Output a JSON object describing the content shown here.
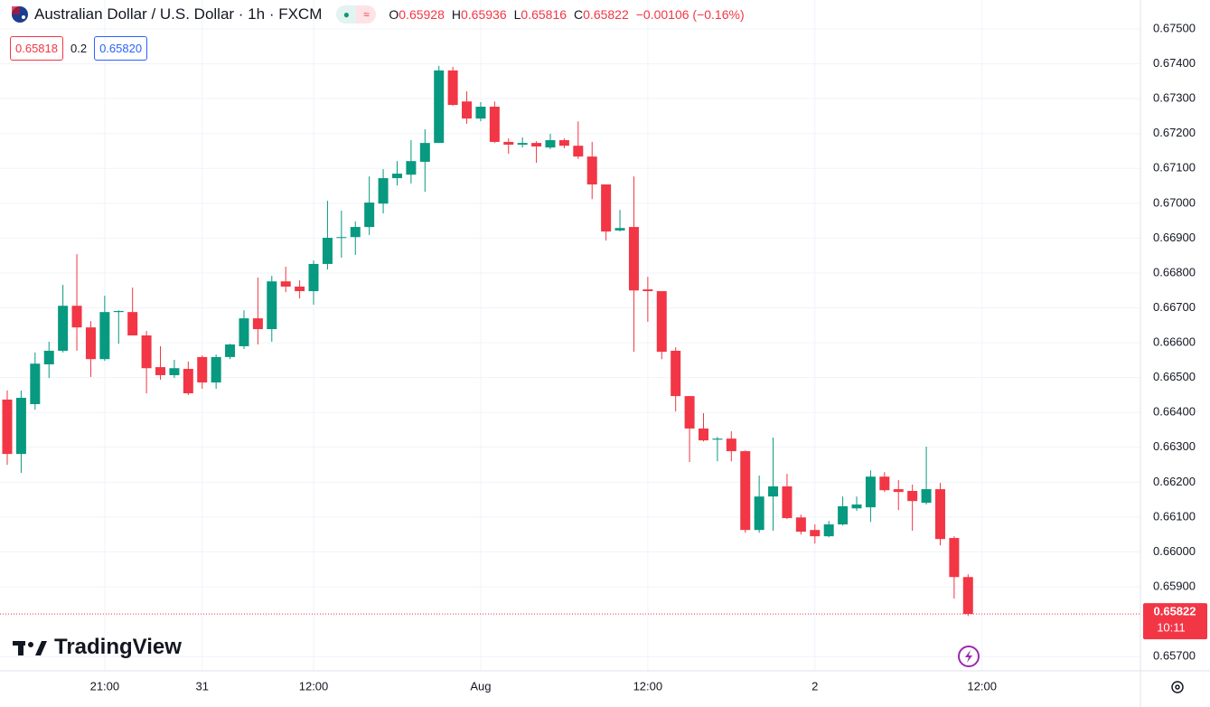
{
  "chart_data": {
    "type": "candlestick",
    "title": "Australian Dollar / U.S. Dollar · 1h · FXCM",
    "legend": {
      "open_key": "O",
      "open": "0.65928",
      "high_key": "H",
      "high": "0.65936",
      "low_key": "L",
      "low": "0.65816",
      "close_key": "C",
      "close": "0.65822",
      "change": "−0.00106 (−0.16%)"
    },
    "bid": "0.65818",
    "spread": "0.2",
    "ask": "0.65820",
    "countdown": "10:11",
    "brand": "TradingView",
    "up_color": "#089981",
    "down_color": "#f23645",
    "categories": [
      null,
      null,
      null,
      null,
      null,
      null,
      null,
      "21:00",
      null,
      null,
      null,
      null,
      null,
      null,
      "31",
      null,
      null,
      null,
      null,
      null,
      null,
      null,
      "12:00",
      null,
      null,
      null,
      null,
      null,
      null,
      null,
      null,
      null,
      null,
      null,
      "Aug",
      null,
      null,
      null,
      null,
      null,
      null,
      null,
      null,
      null,
      null,
      null,
      "12:00",
      null,
      null,
      null,
      null,
      null,
      null,
      null,
      null,
      null,
      null,
      null,
      "2",
      null,
      null,
      null,
      null,
      null,
      null,
      null,
      null,
      null,
      null,
      null,
      "12:00"
    ],
    "open": [
      0.66437,
      0.66281,
      0.66424,
      0.66538,
      0.66577,
      0.66706,
      0.66644,
      0.66553,
      0.66688,
      0.66688,
      0.66621,
      0.6653,
      0.66507,
      0.66525,
      0.66559,
      0.66486,
      0.66559,
      0.6659,
      0.6667,
      0.66639,
      0.66776,
      0.66761,
      0.66748,
      0.66826,
      0.66901,
      0.66903,
      0.66932,
      0.66999,
      0.67072,
      0.67082,
      0.67119,
      0.67173,
      0.67381,
      0.67292,
      0.67243,
      0.67277,
      0.67176,
      0.67168,
      0.67173,
      0.6716,
      0.67181,
      0.67165,
      0.67134,
      0.67054,
      0.66922,
      0.66932,
      0.66753,
      0.66748,
      0.66577,
      0.66447,
      0.66354,
      0.66322,
      0.66325,
      0.66289,
      0.66063,
      0.66159,
      0.66188,
      0.66099,
      0.66063,
      0.66045,
      0.66079,
      0.66125,
      0.66128,
      0.66216,
      0.6618,
      0.66175,
      0.66141,
      0.6618,
      0.6604,
      0.65928,
      null
    ],
    "high": [
      0.66463,
      0.66463,
      0.66572,
      0.66603,
      0.66766,
      0.66854,
      0.66662,
      0.66735,
      0.66693,
      0.66758,
      0.66634,
      0.6659,
      0.66551,
      0.66546,
      0.66564,
      0.66566,
      0.66597,
      0.66693,
      0.66787,
      0.66792,
      0.66818,
      0.66779,
      0.66836,
      0.67007,
      0.66979,
      0.66948,
      0.67077,
      0.67098,
      0.67121,
      0.67181,
      0.67212,
      0.67394,
      0.67391,
      0.67321,
      0.6729,
      0.67292,
      0.67186,
      0.67189,
      0.67178,
      0.67199,
      0.67186,
      0.67235,
      0.67176,
      0.67054,
      0.66981,
      0.67077,
      0.66789,
      0.66748,
      0.66587,
      0.66447,
      0.66398,
      0.6633,
      0.66346,
      0.66291,
      0.66219,
      0.66328,
      0.66224,
      0.66107,
      0.66079,
      0.66089,
      0.66159,
      0.66159,
      0.66234,
      0.66229,
      0.66206,
      0.66193,
      0.66302,
      0.66198,
      0.66045,
      0.65936,
      null
    ],
    "low": [
      0.6625,
      0.66227,
      0.66408,
      0.66499,
      0.66572,
      0.66577,
      0.66502,
      0.66548,
      0.66597,
      0.66621,
      0.66455,
      0.66494,
      0.66499,
      0.6645,
      0.66468,
      0.66468,
      0.66553,
      0.66582,
      0.66595,
      0.66603,
      0.66745,
      0.66727,
      0.66709,
      0.6681,
      0.66844,
      0.66852,
      0.66909,
      0.66971,
      0.67051,
      0.67057,
      0.67033,
      0.67173,
      0.6728,
      0.67228,
      0.67235,
      0.67173,
      0.67142,
      0.6716,
      0.67116,
      0.67155,
      0.67158,
      0.67127,
      0.67012,
      0.66893,
      0.66919,
      0.66574,
      0.6666,
      0.66553,
      0.66403,
      0.66258,
      0.66317,
      0.6626,
      0.6626,
      0.66055,
      0.66055,
      0.66061,
      0.66094,
      0.6605,
      0.66024,
      0.66042,
      0.66076,
      0.66118,
      0.66086,
      0.66172,
      0.6612,
      0.66061,
      0.66136,
      0.66019,
      0.65866,
      0.65816,
      null
    ],
    "close": [
      0.66281,
      0.66442,
      0.6654,
      0.66577,
      0.66706,
      0.66644,
      0.66553,
      0.66688,
      0.66691,
      0.66621,
      0.66527,
      0.66507,
      0.66527,
      0.66455,
      0.66486,
      0.66559,
      0.66595,
      0.6667,
      0.66639,
      0.66776,
      0.66761,
      0.66748,
      0.66826,
      0.66901,
      0.66903,
      0.66932,
      0.67002,
      0.67072,
      0.67085,
      0.67121,
      0.67173,
      0.67381,
      0.67282,
      0.67243,
      0.67277,
      0.67176,
      0.67168,
      0.67173,
      0.67163,
      0.67181,
      0.67165,
      0.67134,
      0.67054,
      0.66919,
      0.66929,
      0.6675,
      0.66748,
      0.66574,
      0.66447,
      0.66354,
      0.6632,
      0.66325,
      0.66289,
      0.66063,
      0.66159,
      0.66188,
      0.66097,
      0.66058,
      0.66045,
      0.66079,
      0.66131,
      0.66136,
      0.66216,
      0.66177,
      0.66172,
      0.66146,
      0.6618,
      0.66037,
      0.65928,
      0.65822,
      null
    ],
    "ylim": [
      0.65659,
      0.67583
    ],
    "yticks": [
      {
        "value": 0.675,
        "label": "0.67500"
      },
      {
        "value": 0.674,
        "label": "0.67400"
      },
      {
        "value": 0.673,
        "label": "0.67300"
      },
      {
        "value": 0.672,
        "label": "0.67200"
      },
      {
        "value": 0.671,
        "label": "0.67100"
      },
      {
        "value": 0.67,
        "label": "0.67000"
      },
      {
        "value": 0.669,
        "label": "0.66900"
      },
      {
        "value": 0.668,
        "label": "0.66800"
      },
      {
        "value": 0.667,
        "label": "0.66700"
      },
      {
        "value": 0.666,
        "label": "0.66600"
      },
      {
        "value": 0.665,
        "label": "0.66500"
      },
      {
        "value": 0.664,
        "label": "0.66400"
      },
      {
        "value": 0.663,
        "label": "0.66300"
      },
      {
        "value": 0.662,
        "label": "0.66200"
      },
      {
        "value": 0.661,
        "label": "0.66100"
      },
      {
        "value": 0.66,
        "label": "0.66000"
      },
      {
        "value": 0.659,
        "label": "0.65900"
      },
      {
        "value": 0.657,
        "label": "0.65700"
      }
    ],
    "grid": true
  }
}
